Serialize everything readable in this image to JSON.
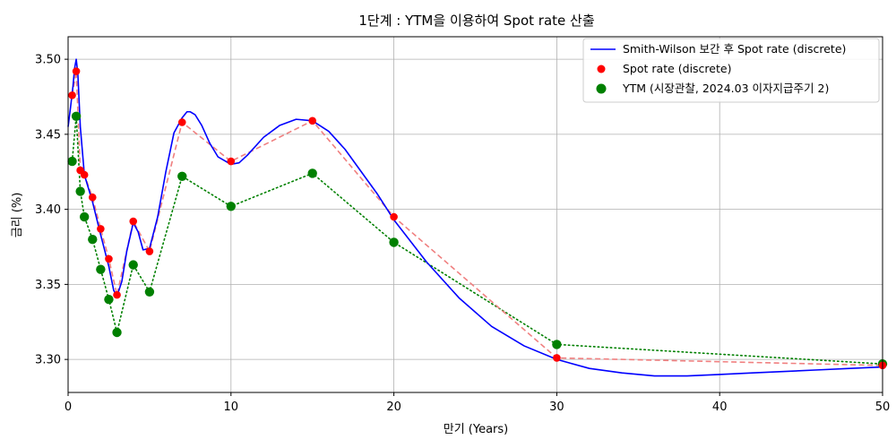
{
  "chart_data": {
    "type": "line",
    "title": "1단계 : YTM을 이용하여 Spot rate 산출",
    "xlabel": "만기 (Years)",
    "ylabel": "금리 (%)",
    "xlim": [
      0,
      50
    ],
    "ylim": [
      3.278,
      3.515
    ],
    "x_ticks": [
      0,
      10,
      20,
      30,
      40,
      50
    ],
    "y_ticks": [
      3.3,
      3.35,
      3.4,
      3.45,
      3.5
    ],
    "y_tick_labels": [
      "3.30",
      "3.35",
      "3.40",
      "3.45",
      "3.50"
    ],
    "grid": true,
    "legend_position": "top-right",
    "colors": {
      "smith_wilson": "#0000ff",
      "spot": "#ff0000",
      "spot_dashed": "#f08080",
      "ytm": "#008000"
    },
    "series": [
      {
        "name": "Smith-Wilson 보간 후 Spot rate (discrete)",
        "kind": "line",
        "x": [
          0,
          0.15,
          0.3,
          0.4,
          0.5,
          0.6,
          0.75,
          1.0,
          1.5,
          2.0,
          2.5,
          2.8,
          3.0,
          3.3,
          3.6,
          4.0,
          4.3,
          4.6,
          5.0,
          5.5,
          6.0,
          6.5,
          7.0,
          7.3,
          7.5,
          7.8,
          8.2,
          8.7,
          9.2,
          10,
          10.5,
          11,
          12,
          13,
          14,
          15,
          16,
          17,
          18,
          19,
          20,
          22,
          24,
          26,
          28,
          30,
          32,
          34,
          36,
          38,
          40,
          42,
          44,
          46,
          48,
          50
        ],
        "y": [
          3.455,
          3.468,
          3.482,
          3.494,
          3.5,
          3.49,
          3.455,
          3.423,
          3.405,
          3.383,
          3.362,
          3.346,
          3.342,
          3.352,
          3.372,
          3.391,
          3.385,
          3.373,
          3.374,
          3.395,
          3.425,
          3.451,
          3.461,
          3.465,
          3.465,
          3.463,
          3.456,
          3.444,
          3.435,
          3.43,
          3.431,
          3.436,
          3.448,
          3.456,
          3.46,
          3.459,
          3.452,
          3.44,
          3.425,
          3.41,
          3.393,
          3.365,
          3.341,
          3.322,
          3.309,
          3.3,
          3.294,
          3.291,
          3.289,
          3.289,
          3.29,
          3.291,
          3.292,
          3.293,
          3.294,
          3.295
        ]
      },
      {
        "name": "Spot rate (discrete)",
        "kind": "scatter",
        "x": [
          0.25,
          0.5,
          0.75,
          1.0,
          1.5,
          2.0,
          2.5,
          3.0,
          4.0,
          5.0,
          7.0,
          10.0,
          15.0,
          20.0,
          30.0,
          50.0
        ],
        "y": [
          3.476,
          3.492,
          3.426,
          3.423,
          3.408,
          3.387,
          3.367,
          3.343,
          3.392,
          3.372,
          3.458,
          3.432,
          3.459,
          3.395,
          3.301,
          3.296
        ]
      },
      {
        "name": "YTM (시장관찰, 2024.03 이자지급주기 2)",
        "kind": "scatter",
        "x": [
          0.25,
          0.5,
          0.75,
          1.0,
          1.5,
          2.0,
          2.5,
          3.0,
          4.0,
          5.0,
          7.0,
          10.0,
          15.0,
          20.0,
          30.0,
          50.0
        ],
        "y": [
          3.432,
          3.462,
          3.412,
          3.395,
          3.38,
          3.36,
          3.34,
          3.318,
          3.363,
          3.345,
          3.422,
          3.402,
          3.424,
          3.378,
          3.31,
          3.297
        ]
      }
    ]
  }
}
